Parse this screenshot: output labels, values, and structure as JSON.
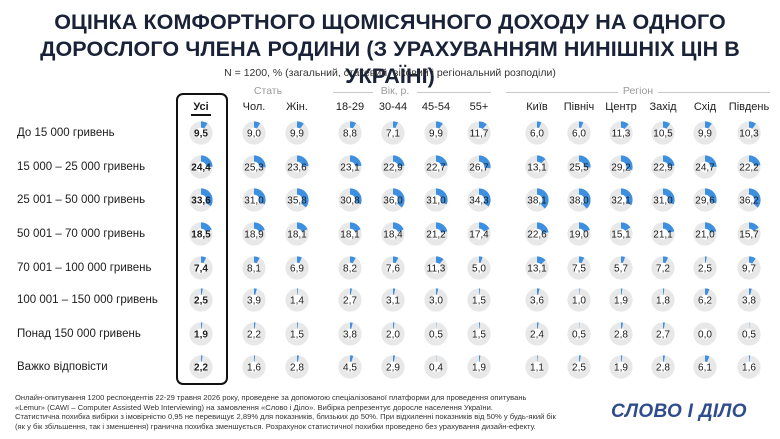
{
  "title_line1": "ОЦІНКА КОМФОРТНОГО ЩОМІСЯЧНОГО ДОХОДУ НА ОДНОГО",
  "title_line2": "ДОРОСЛОГО ЧЛЕНА РОДИНИ (З УРАХУВАННЯМ НИНІШНІХ ЦІН В УКРАЇНІ)",
  "subtitle": "N = 1200, % (загальний, статевий, віковий і регіональний розподіли)",
  "groups": {
    "gender": "Стать",
    "age": "Вік, р.",
    "region": "Регіон"
  },
  "footer": {
    "line1": "Онлайн-опитування 1200 респондентів 22-29 травня 2026 року, проведене за допомогою спеціалізованої платформи для проведення опитувань",
    "line2": "«Lemur» (CAWI – Computer Assisted Web Interviewing) на замовлення «Слово і Діло». Вибірка репрезентує доросле населення України.",
    "line3": "Статистична похибка вибірки з імовірністю 0,95 не перевищує 2,89% для показників, близьких до 50%. При відхиленні показників від 50% у будь-який бік",
    "line4": "(як у бік збільшення, так і зменшення) гранична похибка зменшується. Розрахунок статистичної похибки проведено без урахування дизайн-ефекту."
  },
  "logo": "СЛОВО І ДІЛО",
  "colors": {
    "accent": "#3d8fe0",
    "track": "#e8e8e8",
    "title": "#1a2238",
    "logo": "#2f4d8c"
  },
  "chart_data": {
    "type": "table",
    "title": "ОЦІНКА КОМФОРТНОГО ЩОМІСЯЧНОГО ДОХОДУ НА ОДНОГО ДОРОСЛОГО ЧЛЕНА РОДИНИ (З УРАХУВАННЯМ НИНІШНІХ ЦІН В УКРАЇНІ)",
    "unit": "%",
    "categories": [
      "До 15 000 гривень",
      "15 000 – 25 000 гривень",
      "25 001 – 50 000 гривень",
      "50 001 – 70 000 гривень",
      "70 001 – 100 000 гривень",
      "100 001 – 150 000 гривень",
      "Понад 150 000 гривень",
      "Важко відповісти"
    ],
    "series": [
      {
        "name": "Усі",
        "group": "",
        "values": [
          9.5,
          24.4,
          33.6,
          18.5,
          7.4,
          2.5,
          1.9,
          2.2
        ]
      },
      {
        "name": "Чол.",
        "group": "Стать",
        "values": [
          9.0,
          25.3,
          31.0,
          18.9,
          8.1,
          3.9,
          2.2,
          1.6
        ]
      },
      {
        "name": "Жін.",
        "group": "Стать",
        "values": [
          9.9,
          23.6,
          35.8,
          18.1,
          6.9,
          1.4,
          1.5,
          2.8
        ]
      },
      {
        "name": "18-29",
        "group": "Вік, р.",
        "values": [
          8.8,
          23.1,
          30.8,
          18.1,
          8.2,
          2.7,
          3.8,
          4.5
        ]
      },
      {
        "name": "30-44",
        "group": "Вік, р.",
        "values": [
          7.1,
          22.9,
          36.0,
          18.4,
          7.6,
          3.1,
          2.0,
          2.9
        ]
      },
      {
        "name": "45-54",
        "group": "Вік, р.",
        "values": [
          9.9,
          22.7,
          31.0,
          21.2,
          11.3,
          3.0,
          0.5,
          0.4
        ]
      },
      {
        "name": "55+",
        "group": "Вік, р.",
        "values": [
          11.7,
          26.7,
          34.3,
          17.4,
          5.0,
          1.5,
          1.5,
          1.9
        ]
      },
      {
        "name": "Київ",
        "group": "Регіон",
        "values": [
          6.0,
          13.1,
          38.1,
          22.6,
          13.1,
          3.6,
          2.4,
          1.1
        ]
      },
      {
        "name": "Півнiч",
        "group": "Регіон",
        "values": [
          6.0,
          25.5,
          38.0,
          19.0,
          7.5,
          1.0,
          0.5,
          2.5
        ]
      },
      {
        "name": "Центр",
        "group": "Регіон",
        "values": [
          11.3,
          29.2,
          32.1,
          15.1,
          5.7,
          1.9,
          2.8,
          1.9
        ]
      },
      {
        "name": "Захід",
        "group": "Регіон",
        "values": [
          10.5,
          22.9,
          31.0,
          21.1,
          7.2,
          1.8,
          2.7,
          2.8
        ]
      },
      {
        "name": "Схід",
        "group": "Регіон",
        "values": [
          9.9,
          24.7,
          29.6,
          21.0,
          2.5,
          6.2,
          0.0,
          6.1
        ]
      },
      {
        "name": "Південь",
        "group": "Регіон",
        "values": [
          10.3,
          22.2,
          36.2,
          15.7,
          9.7,
          3.8,
          0.5,
          1.6
        ]
      }
    ]
  }
}
